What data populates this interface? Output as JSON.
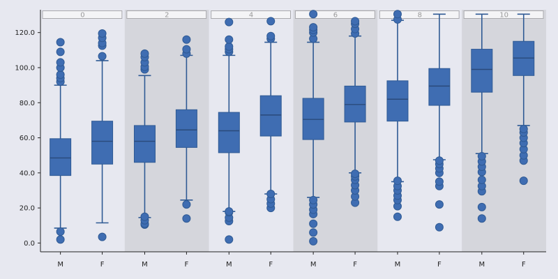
{
  "colors": {
    "background": "#e7e8f0",
    "panel_light": "#e7e8f0",
    "panel_dark": "#d5d6dc",
    "box_fill": "#3f6db2",
    "box_stroke": "#2f5a94",
    "strip_fill": "#f4f4f6",
    "strip_stroke": "#a9a9ad",
    "axis": "#222222"
  },
  "chart_data": {
    "type": "boxplot",
    "facet_labels": [
      "0",
      "2",
      "4",
      "6",
      "8",
      "10"
    ],
    "categories": [
      "M",
      "F"
    ],
    "ylim": [
      -5,
      133
    ],
    "y_ticks": [
      0,
      20,
      40,
      60,
      80,
      100,
      120
    ],
    "y_tick_labels": [
      "0.0",
      "20.0",
      "40.0",
      "60.0",
      "80.0",
      "100.0",
      "120.0"
    ],
    "panel_shading": [
      "light",
      "dark",
      "light",
      "dark",
      "light",
      "dark"
    ],
    "facets": [
      {
        "label": "0",
        "boxes": [
          {
            "category": "M",
            "whisker_low": 8.5,
            "q1": 38.5,
            "median": 48.5,
            "q3": 59.5,
            "whisker_high": 90,
            "outliers": [
              2,
              6.5,
              92,
              94,
              96,
              100,
              103,
              109,
              114.5
            ]
          },
          {
            "category": "F",
            "whisker_low": 11.5,
            "q1": 45,
            "median": 58,
            "q3": 69.5,
            "whisker_high": 104,
            "outliers": [
              3.5,
              106.5,
              112.5,
              114,
              117,
              119.5
            ]
          }
        ]
      },
      {
        "label": "2",
        "boxes": [
          {
            "category": "M",
            "whisker_low": 14.5,
            "q1": 46,
            "median": 58,
            "q3": 67,
            "whisker_high": 95.5,
            "outliers": [
              10.5,
              11,
              13,
              15,
              99,
              100.5,
              103,
              106,
              108
            ]
          },
          {
            "category": "F",
            "whisker_low": 24.5,
            "q1": 54.5,
            "median": 64.5,
            "q3": 76,
            "whisker_high": 107,
            "outliers": [
              14,
              22,
              108,
              110.5,
              116
            ]
          }
        ]
      },
      {
        "label": "4",
        "boxes": [
          {
            "category": "M",
            "whisker_low": 18,
            "q1": 51.5,
            "median": 64,
            "q3": 74.5,
            "whisker_high": 107,
            "outliers": [
              2,
              12.5,
              14.5,
              17.5,
              18,
              109,
              110.5,
              112,
              116,
              126
            ]
          },
          {
            "category": "F",
            "whisker_low": 28,
            "q1": 61,
            "median": 73,
            "q3": 84,
            "whisker_high": 114.5,
            "outliers": [
              20,
              22.5,
              25,
              28,
              116.5,
              118,
              126.5
            ]
          }
        ]
      },
      {
        "label": "6",
        "boxes": [
          {
            "category": "M",
            "whisker_low": 26,
            "q1": 59,
            "median": 70.5,
            "q3": 82.5,
            "whisker_high": 114.5,
            "outliers": [
              1,
              6,
              11,
              16.5,
              19,
              22,
              24.5,
              116.5,
              120,
              121.5,
              123,
              130.5
            ]
          },
          {
            "category": "F",
            "whisker_low": 40,
            "q1": 69,
            "median": 79,
            "q3": 89.5,
            "whisker_high": 118,
            "outliers": [
              23,
              26.5,
              30,
              33,
              36,
              38,
              39.5,
              119.5,
              122,
              125,
              126.5
            ]
          }
        ]
      },
      {
        "label": "8",
        "boxes": [
          {
            "category": "M",
            "whisker_low": 35,
            "q1": 69.5,
            "median": 82,
            "q3": 92.5,
            "whisker_high": 127,
            "outliers": [
              15,
              21,
              24.5,
              27,
              30,
              32.5,
              35.5,
              127.5,
              130.5
            ]
          },
          {
            "category": "F",
            "whisker_low": 47.5,
            "q1": 78.5,
            "median": 89.5,
            "q3": 99.5,
            "whisker_high": 130.5,
            "outliers": [
              9,
              22,
              32.5,
              35,
              40,
              42.5,
              45,
              47
            ]
          }
        ]
      },
      {
        "label": "10",
        "boxes": [
          {
            "category": "M",
            "whisker_low": 51,
            "q1": 86,
            "median": 99,
            "q3": 110.5,
            "whisker_high": 130.5,
            "outliers": [
              14,
              20.5,
              29.5,
              32.5,
              36,
              40.5,
              43.5,
              46.5,
              49.5
            ]
          },
          {
            "category": "F",
            "whisker_low": 67,
            "q1": 95.5,
            "median": 105.5,
            "q3": 115,
            "whisker_high": 130.5,
            "outliers": [
              35.5,
              47,
              50,
              53.5,
              57,
              60,
              63,
              65
            ]
          }
        ]
      }
    ]
  }
}
